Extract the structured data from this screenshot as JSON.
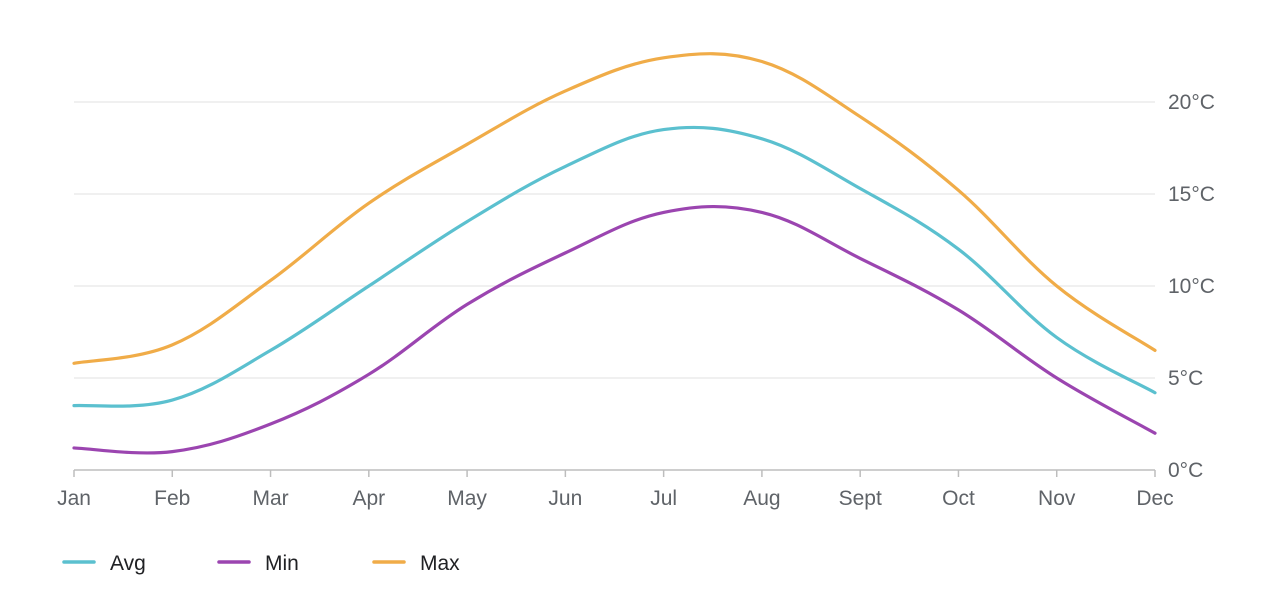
{
  "chart_data": {
    "type": "line",
    "categories": [
      "Jan",
      "Feb",
      "Mar",
      "Apr",
      "May",
      "Jun",
      "Jul",
      "Aug",
      "Sept",
      "Oct",
      "Nov",
      "Dec"
    ],
    "series": [
      {
        "name": "Avg",
        "color": "#5bc0cf",
        "values": [
          3.5,
          3.8,
          6.5,
          10.0,
          13.5,
          16.5,
          18.5,
          18.0,
          15.3,
          12.0,
          7.2,
          4.2
        ]
      },
      {
        "name": "Min",
        "color": "#9b45b0",
        "values": [
          1.2,
          1.0,
          2.5,
          5.2,
          9.0,
          11.8,
          14.0,
          14.0,
          11.5,
          8.7,
          5.0,
          2.0
        ]
      },
      {
        "name": "Max",
        "color": "#f0ac48",
        "values": [
          5.8,
          6.8,
          10.3,
          14.5,
          17.7,
          20.6,
          22.4,
          22.2,
          19.2,
          15.2,
          10.0,
          6.5
        ]
      }
    ],
    "y_ticks": [
      "0°C",
      "5°C",
      "10°C",
      "15°C",
      "20°C"
    ],
    "ylim": [
      0,
      25
    ],
    "y_axis_side": "right",
    "grid": true,
    "legend_position": "bottom-left",
    "title": "",
    "xlabel": "",
    "ylabel": ""
  }
}
